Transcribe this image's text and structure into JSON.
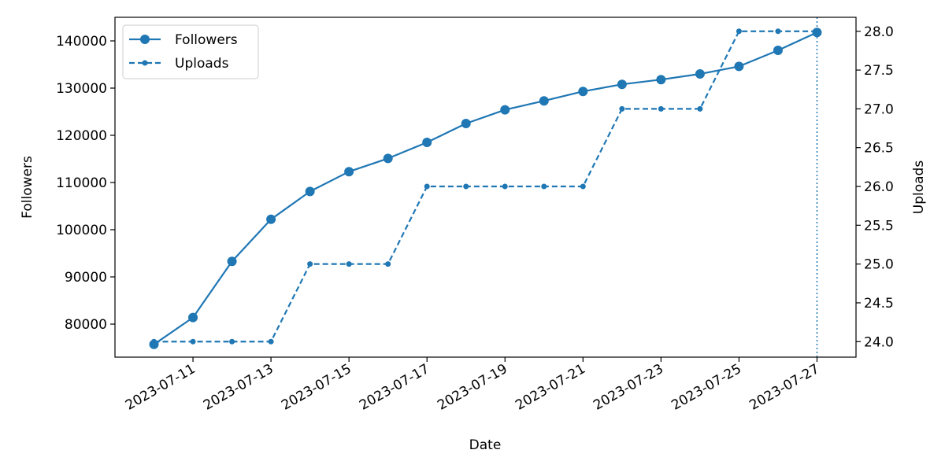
{
  "chart_data": {
    "type": "line",
    "title": "",
    "xlabel": "Date",
    "ylabel_left": "Followers",
    "ylabel_right": "Uploads",
    "x": [
      "2023-07-10",
      "2023-07-11",
      "2023-07-12",
      "2023-07-13",
      "2023-07-14",
      "2023-07-15",
      "2023-07-16",
      "2023-07-17",
      "2023-07-18",
      "2023-07-19",
      "2023-07-20",
      "2023-07-21",
      "2023-07-22",
      "2023-07-23",
      "2023-07-24",
      "2023-07-25",
      "2023-07-26",
      "2023-07-27"
    ],
    "x_ticks": [
      "2023-07-11",
      "2023-07-13",
      "2023-07-15",
      "2023-07-17",
      "2023-07-19",
      "2023-07-21",
      "2023-07-23",
      "2023-07-25",
      "2023-07-27"
    ],
    "xlim": [
      "2023-07-09",
      "2023-07-28"
    ],
    "ylim_left": [
      73000,
      145000
    ],
    "y_ticks_left": [
      "80000",
      "90000",
      "100000",
      "110000",
      "120000",
      "130000",
      "140000"
    ],
    "ylim_right": [
      23.8,
      28.18
    ],
    "y_ticks_right": [
      "24.0",
      "24.5",
      "25.0",
      "25.5",
      "26.0",
      "26.5",
      "27.0",
      "27.5",
      "28.0"
    ],
    "series": [
      {
        "name": "Followers",
        "axis": "left",
        "style": "solid",
        "color": "#1f77b4",
        "values": [
          75700,
          81400,
          93300,
          102200,
          108100,
          112300,
          115100,
          118500,
          122500,
          125400,
          127300,
          129300,
          130800,
          131800,
          133000,
          134600,
          138000,
          141800
        ]
      },
      {
        "name": "Uploads",
        "axis": "right",
        "style": "dashed",
        "color": "#1f77b4",
        "values": [
          24,
          24,
          24,
          24,
          25,
          25,
          25,
          26,
          26,
          26,
          26,
          26,
          27,
          27,
          27,
          28,
          28,
          28
        ]
      }
    ],
    "vline": {
      "x": "2023-07-27",
      "style": "dotted",
      "color": "#1f77b4"
    },
    "grid": false,
    "legend": "top-left"
  }
}
